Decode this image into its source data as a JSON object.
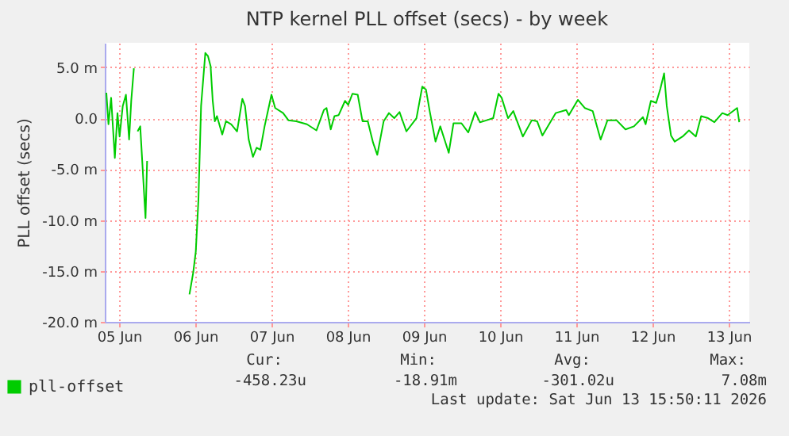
{
  "chart_data": {
    "type": "line",
    "title": "NTP kernel PLL offset (secs) - by week",
    "ylabel": "PLL offset (secs)",
    "x": [
      "2026-06-04T20:00",
      "2026-06-04T20:40",
      "2026-06-04T21:30",
      "2026-06-04T22:40",
      "2026-06-04T23:30",
      "2026-06-05T00:10",
      "2026-06-05T01:10",
      "2026-06-05T02:10",
      "2026-06-05T03:10",
      "2026-06-05T03:50",
      "2026-06-05T04:40",
      "2026-06-05T05:20",
      "2026-06-05T05:50",
      "2026-06-05T06:40",
      "2026-06-05T08:20",
      "2026-06-05T08:50",
      "2026-06-05T10:00",
      "2026-06-05T22:10",
      "2026-06-05T23:20",
      "2026-06-06T00:10",
      "2026-06-06T01:00",
      "2026-06-06T01:50",
      "2026-06-06T03:10",
      "2026-06-06T04:00",
      "2026-06-06T04:50",
      "2026-06-06T05:30",
      "2026-06-06T06:10",
      "2026-06-06T06:50",
      "2026-06-06T08:30",
      "2026-06-06T09:40",
      "2026-06-06T11:20",
      "2026-06-06T13:10",
      "2026-06-06T14:50",
      "2026-06-06T15:40",
      "2026-06-06T16:50",
      "2026-06-06T18:10",
      "2026-06-06T19:20",
      "2026-06-06T20:30",
      "2026-06-06T21:50",
      "2026-06-07T00:00",
      "2026-06-07T01:10",
      "2026-06-07T03:40",
      "2026-06-07T05:20",
      "2026-06-07T07:50",
      "2026-06-07T11:10",
      "2026-06-07T14:10",
      "2026-06-07T16:30",
      "2026-06-07T17:20",
      "2026-06-07T18:40",
      "2026-06-07T19:50",
      "2026-06-07T21:10",
      "2026-06-07T23:10",
      "2026-06-08T00:10",
      "2026-06-08T01:30",
      "2026-06-08T03:10",
      "2026-06-08T04:40",
      "2026-06-08T06:20",
      "2026-06-08T08:00",
      "2026-06-08T09:20",
      "2026-06-08T11:20",
      "2026-06-08T13:00",
      "2026-06-08T14:40",
      "2026-06-08T16:20",
      "2026-06-08T18:30",
      "2026-06-08T21:40",
      "2026-06-08T23:30",
      "2026-06-09T00:40",
      "2026-06-09T01:50",
      "2026-06-09T03:40",
      "2026-06-09T05:10",
      "2026-06-09T06:30",
      "2026-06-09T07:50",
      "2026-06-09T09:20",
      "2026-06-09T11:50",
      "2026-06-09T14:00",
      "2026-06-09T16:10",
      "2026-06-09T17:40",
      "2026-06-09T19:50",
      "2026-06-09T21:50",
      "2026-06-09T23:30",
      "2026-06-10T00:30",
      "2026-06-10T02:30",
      "2026-06-10T04:10",
      "2026-06-10T07:10",
      "2026-06-10T10:00",
      "2026-06-10T11:40",
      "2026-06-10T13:20",
      "2026-06-10T17:30",
      "2026-06-10T20:50",
      "2026-06-10T21:40",
      "2026-06-11T00:30",
      "2026-06-11T02:40",
      "2026-06-11T05:10",
      "2026-06-11T07:40",
      "2026-06-11T09:50",
      "2026-06-11T12:40",
      "2026-06-11T15:30",
      "2026-06-11T18:10",
      "2026-06-11T21:00",
      "2026-06-11T21:50",
      "2026-06-11T23:30",
      "2026-06-12T01:10",
      "2026-06-12T02:30",
      "2026-06-12T03:40",
      "2026-06-12T04:30",
      "2026-06-12T05:50",
      "2026-06-12T07:00",
      "2026-06-12T09:30",
      "2026-06-12T11:30",
      "2026-06-12T13:40",
      "2026-06-12T15:20",
      "2026-06-12T17:30",
      "2026-06-12T19:30",
      "2026-06-12T22:00",
      "2026-06-12T23:40",
      "2026-06-13T01:50",
      "2026-06-13T02:40",
      "2026-06-13T03:20"
    ],
    "series": [
      {
        "name": "pll-offset",
        "color": "#00cc00",
        "values": [
          2.5,
          -0.6,
          2.0,
          -3.9,
          0.5,
          -1.8,
          1.2,
          2.3,
          -2.1,
          1.7,
          4.9,
          null,
          -1.3,
          -0.8,
          -9.8,
          -4.2,
          null,
          -17.3,
          -15.2,
          -13.1,
          -8.0,
          1.2,
          6.4,
          6.1,
          5.1,
          1.7,
          -0.3,
          0.2,
          -1.6,
          -0.3,
          -0.6,
          -1.3,
          1.9,
          1.2,
          -2.1,
          -3.8,
          -2.9,
          -3.1,
          -0.8,
          2.3,
          1.0,
          0.5,
          -0.2,
          -0.3,
          -0.6,
          -1.2,
          0.8,
          1.0,
          -1.1,
          0.2,
          0.3,
          1.7,
          1.3,
          2.4,
          2.3,
          -0.3,
          -0.3,
          -2.4,
          -3.6,
          -0.3,
          0.5,
          0.0,
          0.6,
          -1.3,
          0.0,
          3.1,
          2.8,
          0.7,
          -2.3,
          -0.8,
          -2.1,
          -3.4,
          -0.5,
          -0.5,
          -1.4,
          0.6,
          -0.4,
          -0.2,
          0.0,
          2.4,
          2.0,
          0.0,
          0.7,
          -1.8,
          -0.2,
          -0.3,
          -1.7,
          0.5,
          0.8,
          0.3,
          1.8,
          1.0,
          0.7,
          -2.1,
          -0.2,
          -0.2,
          -1.1,
          -0.8,
          0.1,
          -0.6,
          1.7,
          1.5,
          2.9,
          4.4,
          1.2,
          -1.7,
          -2.3,
          -1.8,
          -1.2,
          -1.8,
          0.2,
          0.0,
          -0.4,
          0.5,
          0.3,
          0.8,
          1.0,
          -0.4
        ]
      }
    ],
    "xlim": [
      "2026-06-04T19:30",
      "2026-06-13T06:30"
    ],
    "xticks": [
      {
        "value": "2026-06-05T00:00",
        "label": "05 Jun"
      },
      {
        "value": "2026-06-06T00:00",
        "label": "06 Jun"
      },
      {
        "value": "2026-06-07T00:00",
        "label": "07 Jun"
      },
      {
        "value": "2026-06-08T00:00",
        "label": "08 Jun"
      },
      {
        "value": "2026-06-09T00:00",
        "label": "09 Jun"
      },
      {
        "value": "2026-06-10T00:00",
        "label": "10 Jun"
      },
      {
        "value": "2026-06-11T00:00",
        "label": "11 Jun"
      },
      {
        "value": "2026-06-12T00:00",
        "label": "12 Jun"
      },
      {
        "value": "2026-06-13T00:00",
        "label": "13 Jun"
      }
    ],
    "ylim": [
      -20,
      7.4
    ],
    "yticks": [
      {
        "value": -20,
        "label": "-20.0 m"
      },
      {
        "value": -15,
        "label": "-15.0 m"
      },
      {
        "value": -10,
        "label": "-10.0 m"
      },
      {
        "value": -5,
        "label": "-5.0 m"
      },
      {
        "value": 0,
        "label": "0.0"
      },
      {
        "value": 5,
        "label": "5.0 m"
      }
    ],
    "grid": true,
    "legend": "bottom left",
    "annotations": [
      "Cur:",
      "Min:",
      "Avg:",
      "Max:",
      "-458.23u",
      "-18.91m",
      "-301.02u",
      "7.08m",
      "Last update: Sat Jun 13 15:50:11 2026"
    ]
  }
}
